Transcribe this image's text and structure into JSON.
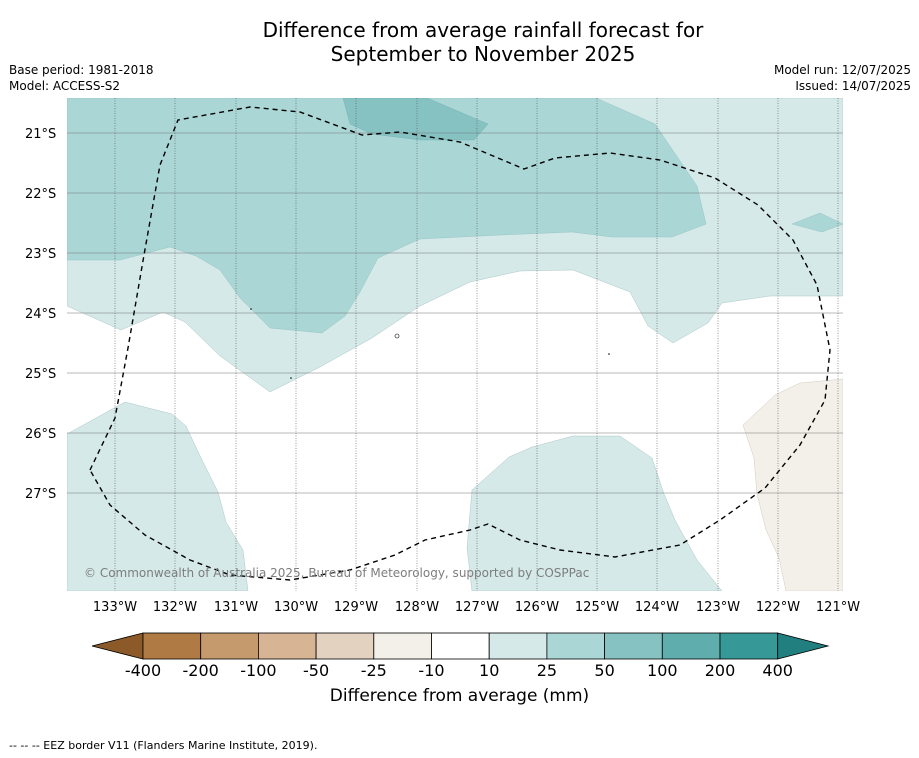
{
  "title": {
    "line1": "Difference from average rainfall forecast for",
    "line2": "September to November 2025"
  },
  "meta": {
    "base_period": "Base period: 1981-2018",
    "model": "Model: ACCESS-S2",
    "model_run": "Model run: 12/07/2025",
    "issued": "Issued: 14/07/2025"
  },
  "map": {
    "lat_labels": [
      "21°S",
      "22°S",
      "23°S",
      "24°S",
      "25°S",
      "26°S",
      "27°S"
    ],
    "lon_labels": [
      "133°W",
      "132°W",
      "131°W",
      "130°W",
      "129°W",
      "128°W",
      "127°W",
      "126°W",
      "125°W",
      "124°W",
      "123°W",
      "122°W",
      "121°W"
    ],
    "copyright": "© Commonwealth of Australia 2025, Bureau of Meteorology, supported by COSPPac"
  },
  "colorbar": {
    "labels": [
      "-400",
      "-200",
      "-100",
      "-50",
      "-25",
      "-10",
      "10",
      "25",
      "50",
      "100",
      "200",
      "400"
    ],
    "colors": [
      "#8c5a28",
      "#b07a44",
      "#c59a6c",
      "#d6b494",
      "#e4d2c0",
      "#f3efe9",
      "#ffffff",
      "#d4e9e8",
      "#aad6d6",
      "#86c2c2",
      "#5fadad",
      "#379898",
      "#21807f"
    ],
    "title": "Difference from average (mm)"
  },
  "footer": {
    "eez_note": "--  --  -- EEZ border V11 (Flanders Marine Institute, 2019)."
  },
  "region_colors": {
    "band_10_25": "#d4e9e8",
    "band_25_50": "#aad6d6",
    "band_50_100": "#86c2c2",
    "band_neg_10_25": "#f3efe9"
  }
}
